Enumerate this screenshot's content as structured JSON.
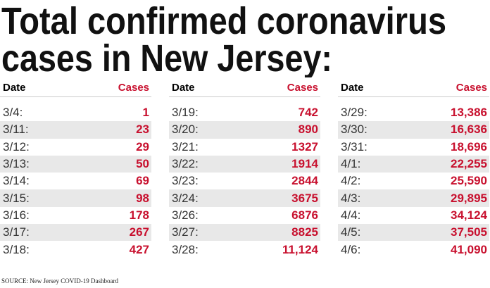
{
  "title": [
    "Total confirmed coronavirus",
    "cases in New Jersey:"
  ],
  "tables": [
    {
      "headers": [
        "Date",
        "Cases"
      ],
      "rows": [
        [
          "3/4:",
          "1"
        ],
        [
          "3/11:",
          "23"
        ],
        [
          "3/12:",
          "29"
        ],
        [
          "3/13:",
          "50"
        ],
        [
          "3/14:",
          "69"
        ],
        [
          "3/15:",
          "98"
        ],
        [
          "3/16:",
          "178"
        ],
        [
          "3/17:",
          "267"
        ],
        [
          "3/18:",
          "427"
        ]
      ]
    },
    {
      "headers": [
        "Date",
        "Cases"
      ],
      "rows": [
        [
          "3/19:",
          "742"
        ],
        [
          "3/20:",
          "890"
        ],
        [
          "3/21:",
          "1327"
        ],
        [
          "3/22:",
          "1914"
        ],
        [
          "3/23:",
          "2844"
        ],
        [
          "3/24:",
          "3675"
        ],
        [
          "3/26:",
          "6876"
        ],
        [
          "3/27:",
          "8825"
        ],
        [
          "3/28:",
          "11,124"
        ]
      ]
    },
    {
      "headers": [
        "Date",
        "Cases"
      ],
      "rows": [
        [
          "3/29:",
          "13,386"
        ],
        [
          "3/30:",
          "16,636"
        ],
        [
          "3/31:",
          "18,696"
        ],
        [
          "4/1:",
          "22,255"
        ],
        [
          "4/2:",
          "25,590"
        ],
        [
          "4/3:",
          "29,895"
        ],
        [
          "4/4:",
          "34,124"
        ],
        [
          "4/5:",
          "37,505"
        ],
        [
          "4/6:",
          "41,090"
        ]
      ]
    }
  ],
  "source": "SOURCE: New Jersey COVID-19 Dashboard"
}
